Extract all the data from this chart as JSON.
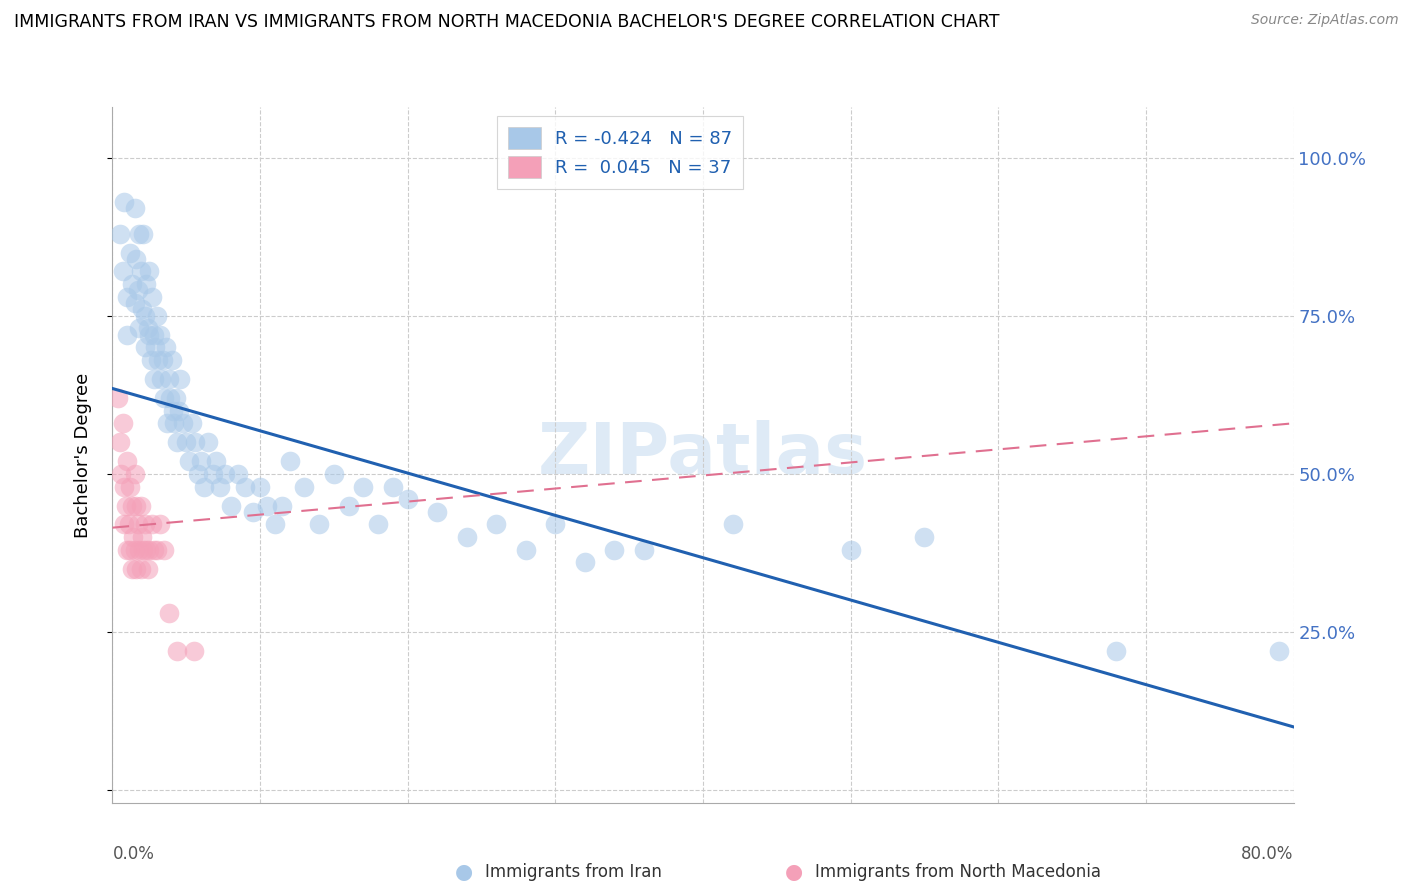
{
  "title": "IMMIGRANTS FROM IRAN VS IMMIGRANTS FROM NORTH MACEDONIA BACHELOR'S DEGREE CORRELATION CHART",
  "source": "Source: ZipAtlas.com",
  "ylabel": "Bachelor's Degree",
  "ytick_labels": [
    "",
    "25.0%",
    "50.0%",
    "75.0%",
    "100.0%"
  ],
  "ytick_vals": [
    0.0,
    0.25,
    0.5,
    0.75,
    1.0
  ],
  "xlim": [
    0.0,
    0.8
  ],
  "ylim": [
    -0.02,
    1.08
  ],
  "blue_color": "#A8C8E8",
  "pink_color": "#F4A0B8",
  "blue_line_color": "#2060B0",
  "pink_line_color": "#E07090",
  "watermark": "ZIPatlas",
  "legend_blue_label": "R = -0.424   N = 87",
  "legend_pink_label": "R =  0.045   N = 37",
  "footer_blue": "Immigrants from Iran",
  "footer_pink": "Immigrants from North Macedonia",
  "blue_line_x0": 0.0,
  "blue_line_y0": 0.635,
  "blue_line_x1": 0.8,
  "blue_line_y1": 0.1,
  "pink_line_x0": 0.0,
  "pink_line_y0": 0.415,
  "pink_line_x1": 0.8,
  "pink_line_y1": 0.58,
  "blue_x": [
    0.005,
    0.007,
    0.008,
    0.01,
    0.01,
    0.012,
    0.013,
    0.015,
    0.015,
    0.016,
    0.017,
    0.018,
    0.018,
    0.019,
    0.02,
    0.021,
    0.022,
    0.022,
    0.023,
    0.024,
    0.025,
    0.025,
    0.026,
    0.027,
    0.028,
    0.028,
    0.029,
    0.03,
    0.031,
    0.032,
    0.033,
    0.034,
    0.035,
    0.036,
    0.037,
    0.038,
    0.039,
    0.04,
    0.041,
    0.042,
    0.043,
    0.044,
    0.045,
    0.046,
    0.048,
    0.05,
    0.052,
    0.054,
    0.056,
    0.058,
    0.06,
    0.062,
    0.065,
    0.068,
    0.07,
    0.073,
    0.076,
    0.08,
    0.085,
    0.09,
    0.095,
    0.1,
    0.105,
    0.11,
    0.115,
    0.12,
    0.13,
    0.14,
    0.15,
    0.16,
    0.17,
    0.18,
    0.19,
    0.2,
    0.22,
    0.24,
    0.26,
    0.28,
    0.3,
    0.32,
    0.34,
    0.36,
    0.42,
    0.5,
    0.55,
    0.68,
    0.79
  ],
  "blue_y": [
    0.88,
    0.82,
    0.93,
    0.78,
    0.72,
    0.85,
    0.8,
    0.92,
    0.77,
    0.84,
    0.79,
    0.88,
    0.73,
    0.82,
    0.76,
    0.88,
    0.75,
    0.7,
    0.8,
    0.73,
    0.72,
    0.82,
    0.68,
    0.78,
    0.72,
    0.65,
    0.7,
    0.75,
    0.68,
    0.72,
    0.65,
    0.68,
    0.62,
    0.7,
    0.58,
    0.65,
    0.62,
    0.68,
    0.6,
    0.58,
    0.62,
    0.55,
    0.6,
    0.65,
    0.58,
    0.55,
    0.52,
    0.58,
    0.55,
    0.5,
    0.52,
    0.48,
    0.55,
    0.5,
    0.52,
    0.48,
    0.5,
    0.45,
    0.5,
    0.48,
    0.44,
    0.48,
    0.45,
    0.42,
    0.45,
    0.52,
    0.48,
    0.42,
    0.5,
    0.45,
    0.48,
    0.42,
    0.48,
    0.46,
    0.44,
    0.4,
    0.42,
    0.38,
    0.42,
    0.36,
    0.38,
    0.38,
    0.42,
    0.38,
    0.4,
    0.22,
    0.22
  ],
  "pink_x": [
    0.004,
    0.005,
    0.006,
    0.007,
    0.008,
    0.008,
    0.009,
    0.01,
    0.01,
    0.011,
    0.012,
    0.012,
    0.013,
    0.013,
    0.014,
    0.015,
    0.015,
    0.016,
    0.016,
    0.017,
    0.018,
    0.019,
    0.019,
    0.02,
    0.021,
    0.022,
    0.023,
    0.024,
    0.025,
    0.027,
    0.028,
    0.03,
    0.032,
    0.035,
    0.038,
    0.044,
    0.055
  ],
  "pink_y": [
    0.62,
    0.55,
    0.5,
    0.58,
    0.48,
    0.42,
    0.45,
    0.52,
    0.38,
    0.42,
    0.48,
    0.38,
    0.45,
    0.35,
    0.4,
    0.5,
    0.38,
    0.45,
    0.35,
    0.42,
    0.38,
    0.45,
    0.35,
    0.4,
    0.38,
    0.42,
    0.38,
    0.35,
    0.38,
    0.42,
    0.38,
    0.38,
    0.42,
    0.38,
    0.28,
    0.22,
    0.22
  ]
}
